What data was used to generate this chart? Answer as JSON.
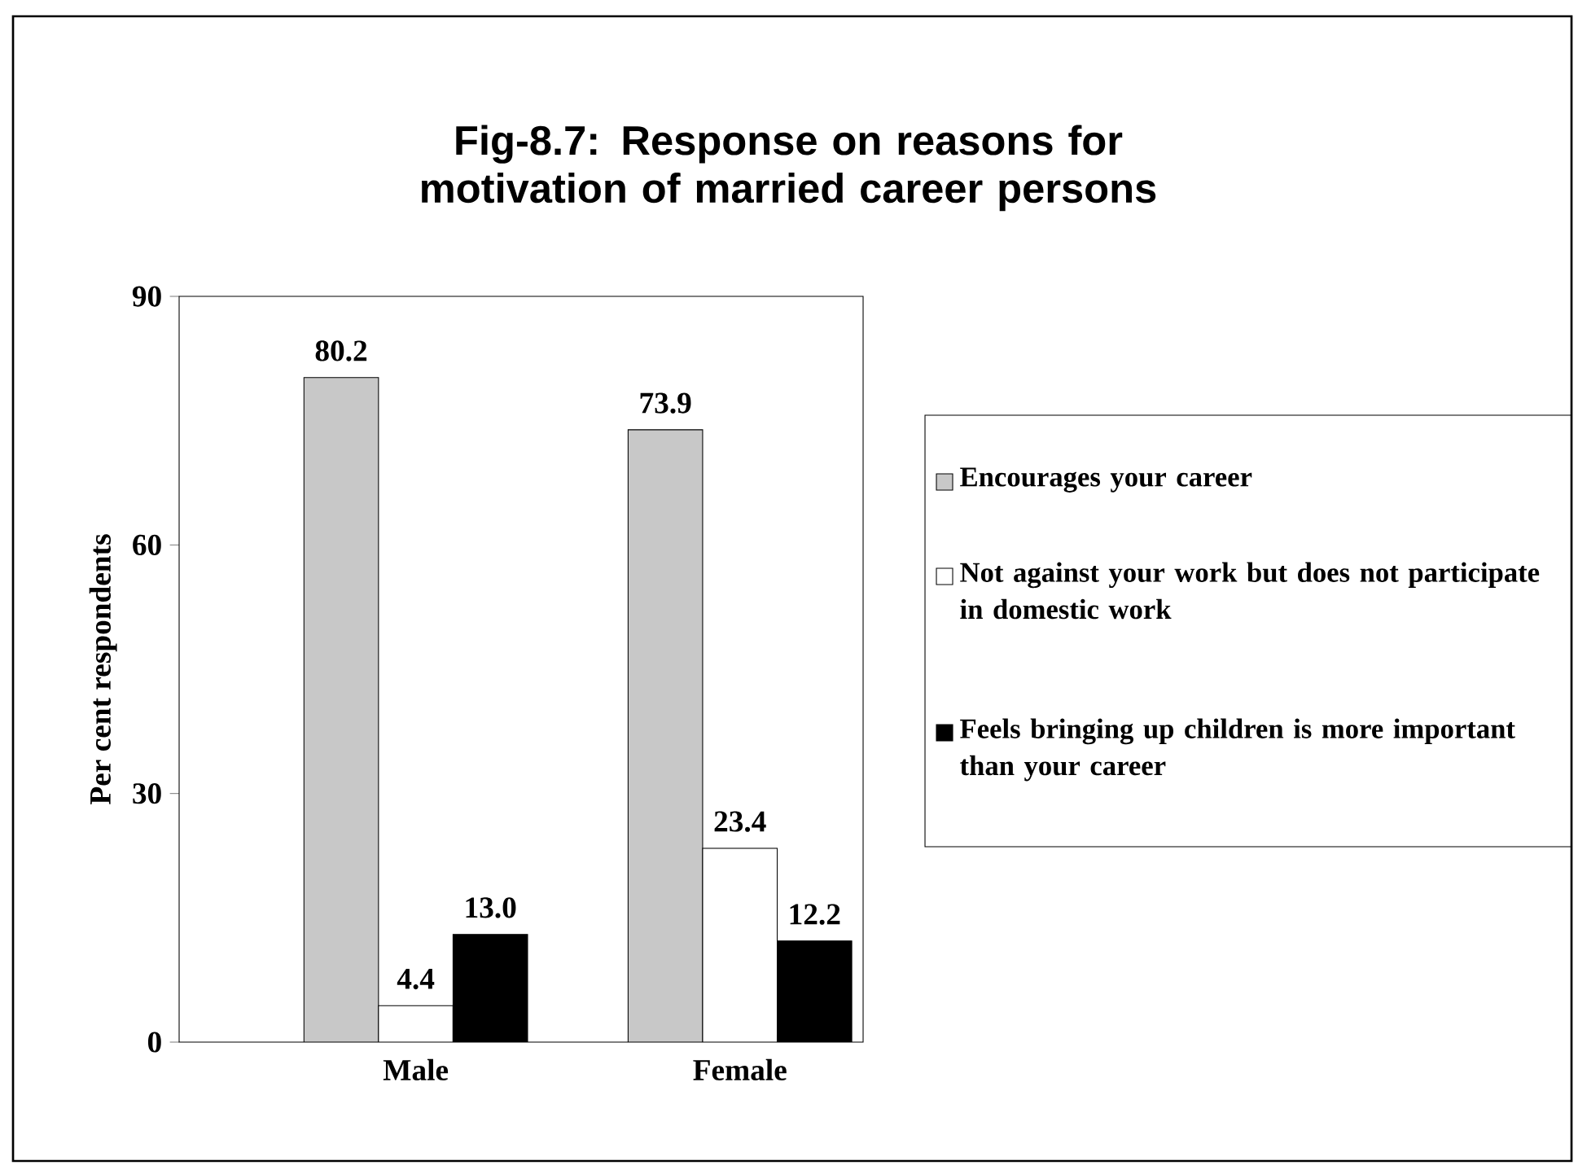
{
  "chart_data": {
    "type": "bar",
    "title": "Fig-8.7: Response on reasons for motivation of married career persons",
    "ylabel": "Per cent respondents",
    "categories": [
      "Male",
      "Female"
    ],
    "series": [
      {
        "name": "Encourages your career",
        "color": "#c8c8c8",
        "values": [
          80.2,
          73.9
        ],
        "value_labels": [
          "80.2",
          "73.9"
        ]
      },
      {
        "name": "Not against your work but does not participate in domestic work",
        "color": "#ffffff",
        "values": [
          4.4,
          23.4
        ],
        "value_labels": [
          "4.4",
          "23.4"
        ]
      },
      {
        "name": "Feels bringing up children is more important than your career",
        "color": "#000000",
        "values": [
          13.0,
          12.2
        ],
        "value_labels": [
          "13.0",
          "12.2"
        ]
      }
    ],
    "ylim": [
      0,
      90
    ],
    "yticks": [
      0,
      30,
      60,
      90
    ],
    "legend": "right",
    "grid": false
  }
}
